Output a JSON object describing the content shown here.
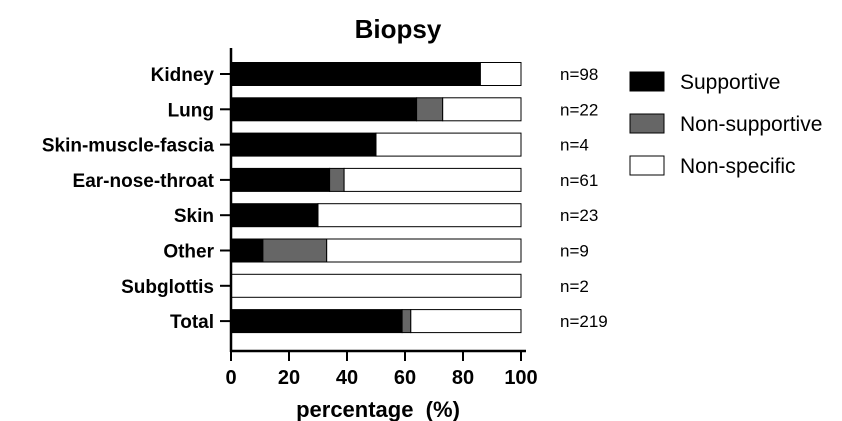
{
  "chart_data": {
    "type": "bar",
    "stacked": true,
    "orientation": "horizontal",
    "title": "Biopsy",
    "xlabel": "percentage  (%)",
    "ylabel": "",
    "xlim": [
      0,
      100
    ],
    "xticks": [
      "0",
      "20",
      "40",
      "60",
      "80",
      "100"
    ],
    "categories": [
      "Kidney",
      "Lung",
      "Skin-muscle-fascia",
      "Ear-nose-throat",
      "Skin",
      "Other",
      "Subglottis",
      "Total"
    ],
    "n_labels": [
      "n=98",
      "n=22",
      "n=4",
      "n=61",
      "n=23",
      "n=9",
      "n=2",
      "n=219"
    ],
    "series": [
      {
        "name": "Supportive",
        "color": "#000000",
        "values": [
          86,
          64,
          50,
          34,
          30,
          11,
          0,
          59
        ]
      },
      {
        "name": "Non-supportive",
        "color": "#666666",
        "values": [
          0,
          9,
          0,
          5,
          0,
          22,
          0,
          3
        ]
      },
      {
        "name": "Non-specific",
        "color": "#ffffff",
        "values": [
          14,
          27,
          50,
          61,
          70,
          67,
          100,
          38
        ]
      }
    ],
    "legend_position": "right",
    "grid": false
  }
}
